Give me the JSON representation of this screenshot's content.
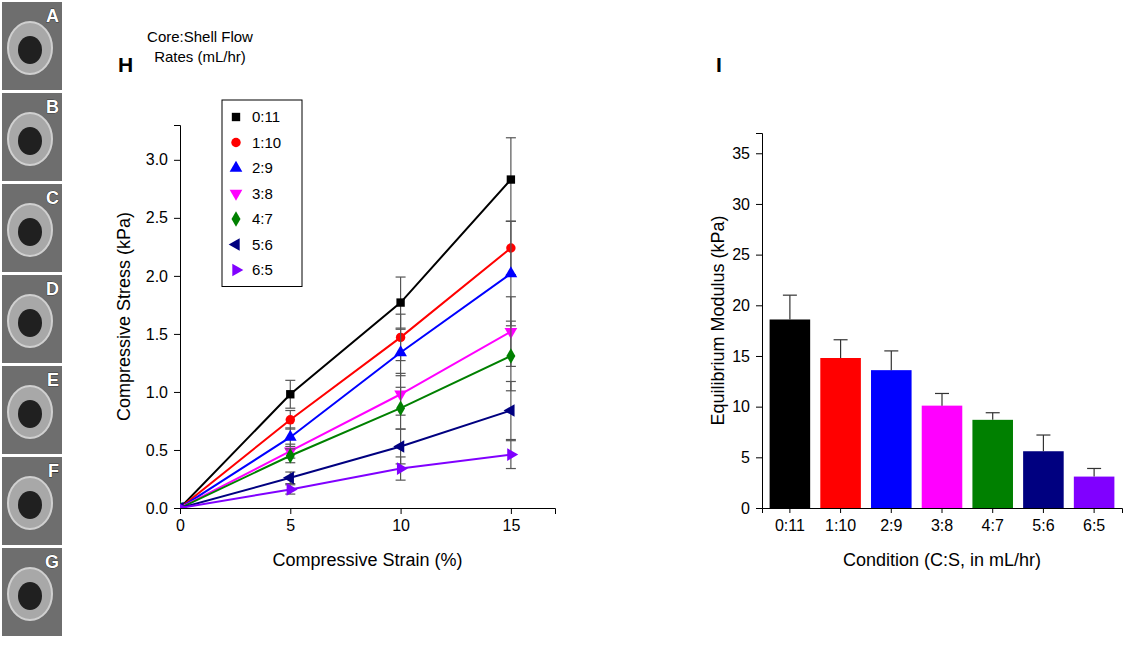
{
  "image_labels": [
    "A",
    "B",
    "C",
    "D",
    "E",
    "F",
    "G"
  ],
  "chart_data": [
    {
      "type": "line",
      "title": "H",
      "x_label": "Compressive Strain (%)",
      "y_label": "Compressive Stress (kPa)",
      "legend_title": "Core:Shell Flow Rates (mL/hr)",
      "legend": "upper left",
      "x": [
        0,
        5,
        10,
        15
      ],
      "xlim": [
        0,
        17
      ],
      "xticks": [
        0,
        5,
        10,
        15
      ],
      "ylim": [
        0,
        3.3
      ],
      "yticks": [
        {
          "value": 0,
          "label": "0.0"
        },
        0.5,
        {
          "value": 1,
          "label": "1.0"
        },
        1.5,
        {
          "value": 2,
          "label": "2.0"
        },
        2.5,
        {
          "value": 3,
          "label": "3.0"
        }
      ],
      "series": [
        {
          "name": "0:11",
          "color": "#000000",
          "marker": "square",
          "values": [
            0,
            0.98,
            1.77,
            2.83
          ],
          "errors": [
            0,
            0.12,
            0.22,
            0.36
          ]
        },
        {
          "name": "1:10",
          "color": "#ff0000",
          "marker": "circle",
          "values": [
            0,
            0.76,
            1.47,
            2.24
          ],
          "errors": [
            0,
            0.08,
            0.2,
            0.23
          ]
        },
        {
          "name": "2:9",
          "color": "#0000ff",
          "marker": "triangle-up",
          "values": [
            0,
            0.61,
            1.34,
            2.02
          ],
          "errors": [
            0,
            0.08,
            0.2,
            0.45
          ]
        },
        {
          "name": "3:8",
          "color": "#ff00ff",
          "marker": "triangle-down",
          "values": [
            0,
            0.49,
            0.98,
            1.52
          ],
          "errors": [
            0,
            0.06,
            0.18,
            0.3
          ]
        },
        {
          "name": "4:7",
          "color": "#008000",
          "marker": "diamond",
          "values": [
            0,
            0.45,
            0.86,
            1.31
          ],
          "errors": [
            0,
            0.06,
            0.18,
            0.3
          ]
        },
        {
          "name": "5:6",
          "color": "#000080",
          "marker": "triangle-left",
          "values": [
            0,
            0.26,
            0.53,
            0.84
          ],
          "errors": [
            0,
            0.05,
            0.15,
            0.25
          ]
        },
        {
          "name": "6:5",
          "color": "#8000ff",
          "marker": "triangle-right",
          "values": [
            0,
            0.16,
            0.34,
            0.46
          ],
          "errors": [
            0,
            0.04,
            0.1,
            0.12
          ]
        }
      ]
    },
    {
      "type": "bar",
      "title": "I",
      "x_label": "Condition (C:S, in mL/hr)",
      "y_label": "Equilibrium Modulus (kPa)",
      "categories": [
        "0:11",
        "1:10",
        "2:9",
        "3:8",
        "4:7",
        "5:6",
        "6:5"
      ],
      "values": [
        18.6,
        14.8,
        13.6,
        10.1,
        8.7,
        5.6,
        3.1
      ],
      "errors": [
        2.4,
        1.8,
        1.9,
        1.2,
        0.7,
        1.6,
        0.8
      ],
      "colors": [
        "#000000",
        "#ff0000",
        "#0000ff",
        "#ff00ff",
        "#008000",
        "#000080",
        "#8000ff"
      ],
      "ylim": [
        0,
        37
      ],
      "yticks": [
        0,
        5,
        10,
        15,
        20,
        25,
        30,
        35
      ]
    }
  ]
}
